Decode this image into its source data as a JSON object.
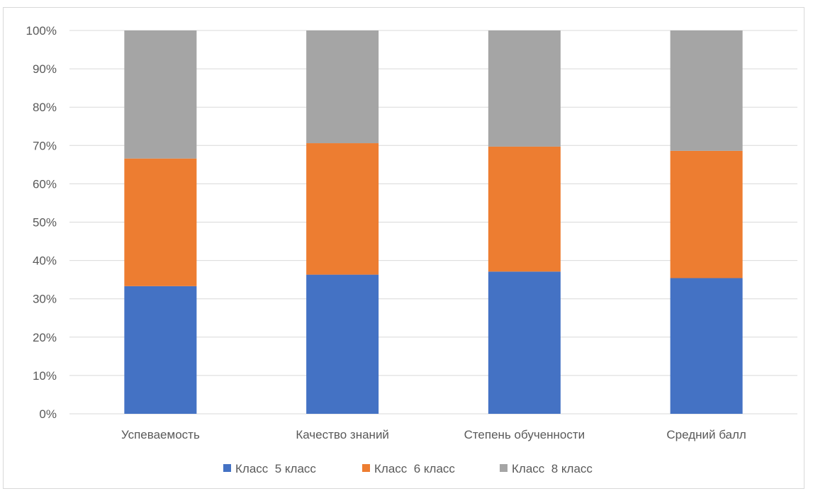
{
  "chart_data": {
    "type": "bar",
    "stacked": "percent",
    "categories": [
      "Успеваемость",
      "Качество знаний",
      "Степень обученности",
      "Средний балл"
    ],
    "series": [
      {
        "name": "Класс  5 класс",
        "color": "#4472c4",
        "values": [
          33.3,
          36.3,
          37.1,
          35.4
        ]
      },
      {
        "name": "Класс  6 класс",
        "color": "#ed7d31",
        "values": [
          33.3,
          34.3,
          32.6,
          33.2
        ]
      },
      {
        "name": "Класс  8 класс",
        "color": "#a5a5a5",
        "values": [
          33.4,
          29.4,
          30.3,
          31.4
        ]
      }
    ],
    "yticks": [
      "0%",
      "10%",
      "20%",
      "30%",
      "40%",
      "50%",
      "60%",
      "70%",
      "80%",
      "90%",
      "100%"
    ],
    "ylim": [
      0,
      100
    ],
    "grid": true,
    "legend_position": "bottom",
    "title": "",
    "xlabel": "",
    "ylabel": ""
  }
}
